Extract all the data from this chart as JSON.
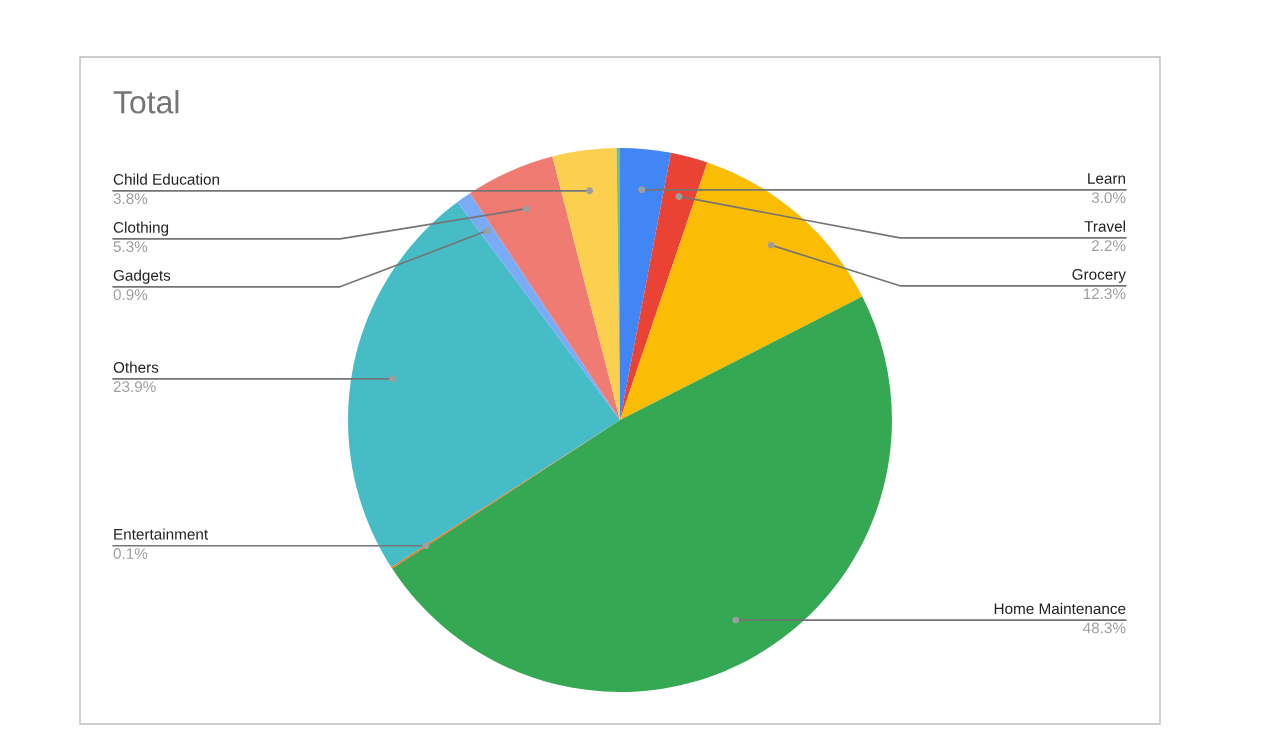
{
  "chart_data": {
    "type": "pie",
    "title": "Total",
    "categories": [
      "Learn",
      "Travel",
      "Grocery",
      "Home Maintenance",
      "Entertainment",
      "Others",
      "Gadgets",
      "Clothing",
      "Child Education",
      null
    ],
    "values": [
      3.0,
      2.2,
      12.3,
      48.3,
      0.1,
      23.9,
      0.9,
      5.3,
      3.8,
      0.2
    ],
    "colors": [
      "#4285f4",
      "#ea4335",
      "#fbbc04",
      "#34a853",
      "#ff6d01",
      "#46bdc6",
      "#7baaf7",
      "#f07b72",
      "#fcd04f",
      "#71c287"
    ],
    "value_labels": [
      "3.0%",
      "2.2%",
      "12.3%",
      "48.3%",
      "0.1%",
      "23.9%",
      "0.9%",
      "5.3%",
      "3.8%",
      null
    ],
    "legend": false
  }
}
